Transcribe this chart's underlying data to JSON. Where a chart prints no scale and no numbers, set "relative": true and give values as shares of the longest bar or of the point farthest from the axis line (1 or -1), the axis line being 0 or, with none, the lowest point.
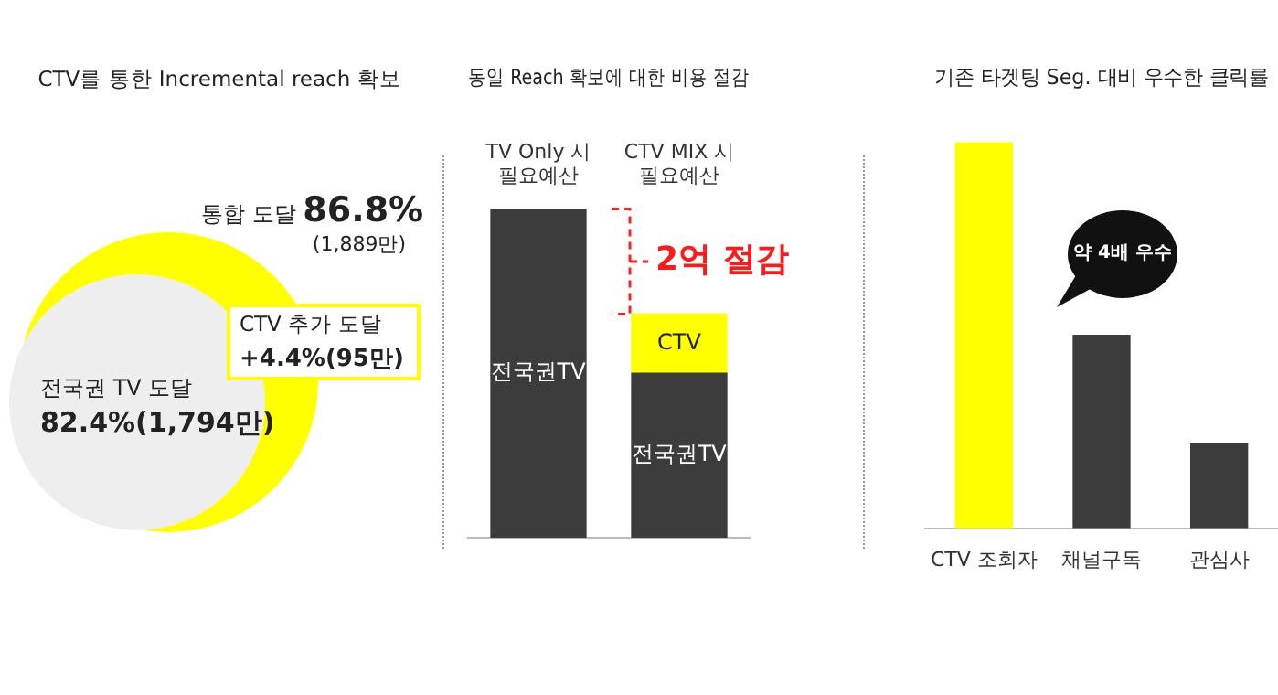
{
  "chart_data": [
    {
      "type": "other",
      "title": "CTV를 통한 Incremental reach 확보",
      "annotations": [
        "통합 도달",
        "86.8%",
        "(1,889만)",
        "CTV 추가 도달",
        "+4.4%(95만)",
        "전국권 TV 도달",
        "82.4%(1,794만)"
      ]
    },
    {
      "type": "bar",
      "title": "동일 Reach 확보에 대한 비용 절감",
      "categories": [
        "TV Only 시\n필요예산",
        "CTV MIX 시\n필요예산"
      ],
      "stacked": true,
      "relative": true,
      "series": [
        {
          "name": "전국권TV",
          "color": "#3c3c3c",
          "values": [
            1,
            0.5
          ]
        },
        {
          "name": "CTV",
          "color": "#ffff00",
          "values": [
            null,
            0.18
          ]
        }
      ],
      "annotations": [
        "2억 절감"
      ]
    },
    {
      "type": "bar",
      "title": "기존 타겟팅 Seg. 대비 우수한 클릭률",
      "categories": [
        "CTV 조회자",
        "채널구독",
        "관심사"
      ],
      "values": [
        1,
        0.5,
        0.22
      ],
      "colors": [
        "#ffff00",
        "#3c3c3c",
        "#3c3c3c"
      ],
      "relative": true,
      "annotations": [
        "약 4배 우수"
      ]
    }
  ]
}
